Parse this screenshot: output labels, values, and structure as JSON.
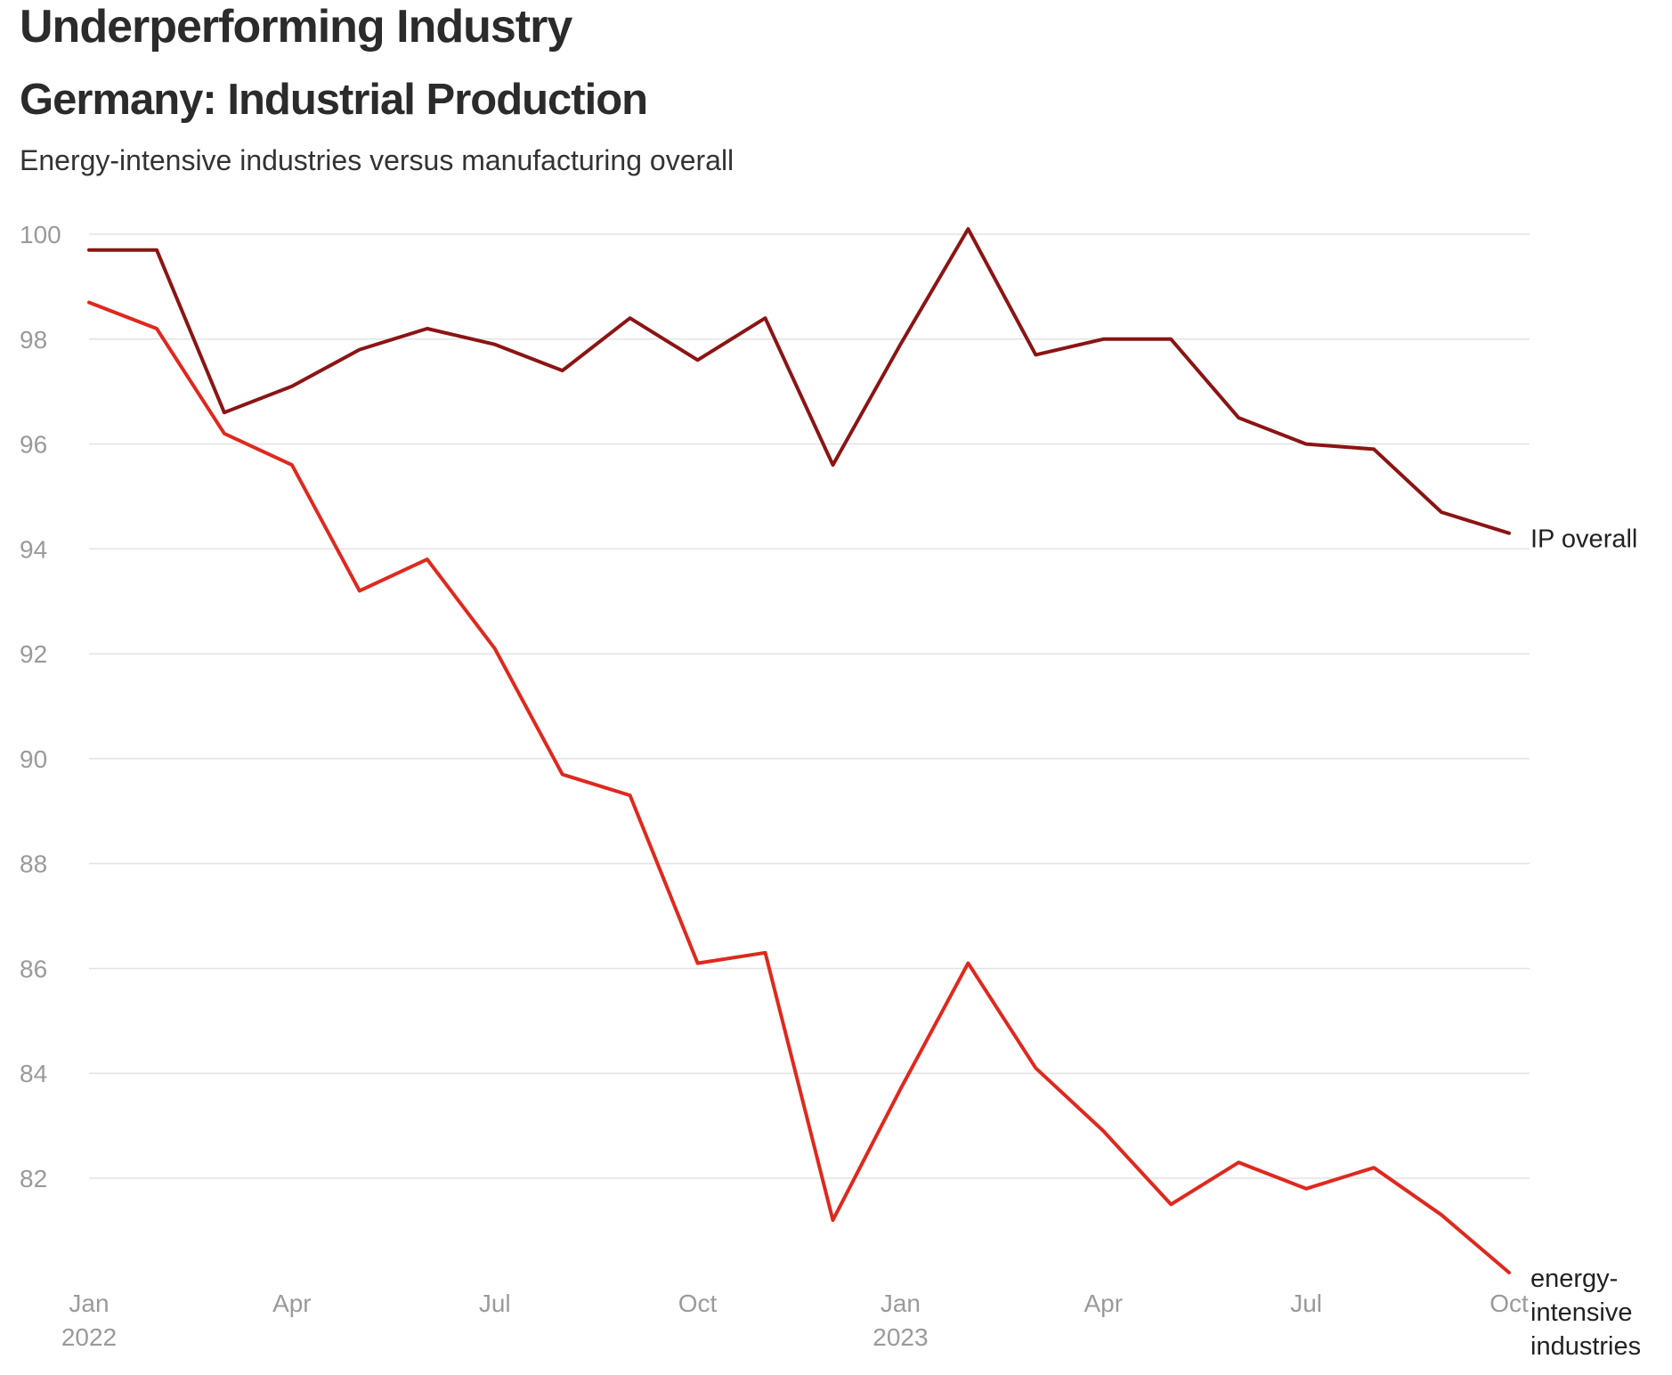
{
  "header": {
    "title": "Underperforming Industry",
    "subtitle": "Germany: Industrial Production",
    "description": "Energy-intensive industries versus manufacturing overall"
  },
  "chart_data": {
    "type": "line",
    "x": [
      "2022-01",
      "2022-02",
      "2022-03",
      "2022-04",
      "2022-05",
      "2022-06",
      "2022-07",
      "2022-08",
      "2022-09",
      "2022-10",
      "2022-11",
      "2022-12",
      "2023-01",
      "2023-02",
      "2023-03",
      "2023-04",
      "2023-05",
      "2023-06",
      "2023-07",
      "2023-08",
      "2023-09",
      "2023-10"
    ],
    "x_tick_labels": [
      {
        "x": "2022-01",
        "lines": [
          "Jan",
          "2022"
        ]
      },
      {
        "x": "2022-04",
        "lines": [
          "Apr"
        ]
      },
      {
        "x": "2022-07",
        "lines": [
          "Jul"
        ]
      },
      {
        "x": "2022-10",
        "lines": [
          "Oct"
        ]
      },
      {
        "x": "2023-01",
        "lines": [
          "Jan",
          "2023"
        ]
      },
      {
        "x": "2023-04",
        "lines": [
          "Apr"
        ]
      },
      {
        "x": "2023-07",
        "lines": [
          "Jul"
        ]
      },
      {
        "x": "2023-10",
        "lines": [
          "Oct"
        ]
      }
    ],
    "y_ticks": [
      82,
      84,
      86,
      88,
      90,
      92,
      94,
      96,
      98,
      100
    ],
    "ylim": [
      80,
      100.2
    ],
    "grid": true,
    "series": [
      {
        "name": "IP overall",
        "label_lines": [
          "IP overall"
        ],
        "color": "#8b1414",
        "values": [
          99.7,
          99.7,
          96.6,
          97.1,
          97.8,
          98.2,
          97.9,
          97.4,
          98.4,
          97.6,
          98.4,
          95.6,
          97.9,
          100.1,
          97.7,
          98.0,
          98.0,
          96.5,
          96.0,
          95.9,
          94.7,
          94.3
        ]
      },
      {
        "name": "energy-intensive industries",
        "label_lines": [
          "energy-",
          "intensive",
          "industries"
        ],
        "color": "#e0281e",
        "values": [
          98.7,
          98.2,
          96.2,
          95.6,
          93.2,
          93.8,
          92.1,
          89.7,
          89.3,
          86.1,
          86.3,
          81.2,
          83.7,
          86.1,
          84.1,
          82.9,
          81.5,
          82.3,
          81.8,
          82.2,
          81.3,
          80.2
        ]
      }
    ]
  }
}
